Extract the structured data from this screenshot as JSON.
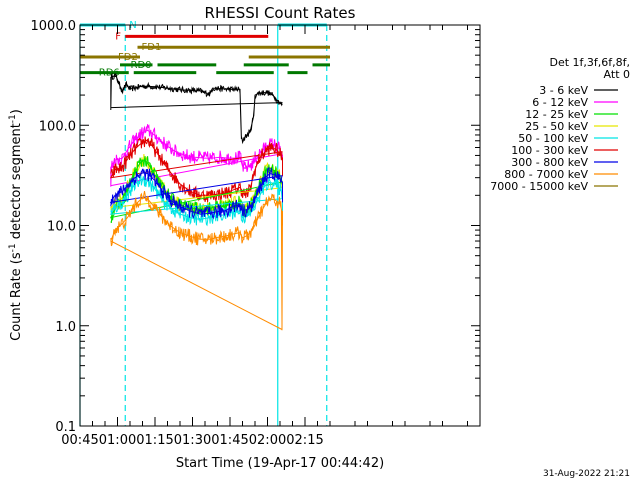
{
  "chart_data": {
    "type": "line",
    "title": "RHESSI Count Rates",
    "xlabel": "Start Time (19-Apr-17 00:44:42)",
    "ylabel_main": "Count Rate (s",
    "ylabel_sup": "-1",
    "ylabel_rest": " detector segment",
    "ylabel_sup2": "-1",
    "ylabel_end": ")",
    "y_scale": "log",
    "ylim": [
      0.1,
      1000
    ],
    "xlim_minutes": [
      0,
      160
    ],
    "x_ticks": [
      {
        "min": 0,
        "label": "00:45"
      },
      {
        "min": 15,
        "label": "01:00"
      },
      {
        "min": 30,
        "label": "01:15"
      },
      {
        "min": 45,
        "label": "01:30"
      },
      {
        "min": 60,
        "label": "01:45"
      },
      {
        "min": 75,
        "label": "02:00"
      },
      {
        "min": 90,
        "label": "02:15"
      }
    ],
    "y_ticks": [
      {
        "value": 0.1,
        "label": "0.1"
      },
      {
        "value": 1,
        "label": "1.0"
      },
      {
        "value": 10,
        "label": "10.0"
      },
      {
        "value": 100,
        "label": "100.0"
      },
      {
        "value": 1000,
        "label": "1000.0"
      }
    ],
    "legend_header": [
      "Det 1f,3f,6f,8f,",
      "Att 0"
    ],
    "footer_date": "31-Aug-2022 21:21",
    "night_lines": [
      {
        "min": 0,
        "style": "solid"
      },
      {
        "min": 18.1,
        "style": "dashed"
      },
      {
        "min": 79.1,
        "style": "solid"
      },
      {
        "min": 98.7,
        "style": "dashed"
      }
    ],
    "flag_intervals": [
      {
        "label": "N",
        "color": "#00e5e5",
        "y": 1000,
        "segments": [
          [
            0,
            18.1
          ],
          [
            79.1,
            98.7
          ]
        ]
      },
      {
        "label": "F",
        "color": "#e00000",
        "y": 770,
        "segments": [
          [
            18.1,
            75.3
          ]
        ]
      },
      {
        "label": "FD1",
        "color": "#8b7500",
        "y": 600,
        "segments": [
          [
            23,
            100
          ]
        ]
      },
      {
        "label": "FD2",
        "color": "#8b7500",
        "y": 480,
        "segments": [
          [
            0,
            24
          ],
          [
            67.5,
            100
          ]
        ]
      },
      {
        "label": "RD0",
        "color": "#007800",
        "y": 400,
        "segments": [
          [
            16,
            29
          ],
          [
            31,
            54.5
          ],
          [
            65.5,
            83.5
          ],
          [
            93,
            100
          ]
        ]
      },
      {
        "label": "RD6",
        "color": "#007800",
        "y": 335,
        "segments": [
          [
            0,
            19.5
          ],
          [
            21.5,
            46.5
          ],
          [
            54.5,
            77.5
          ],
          [
            83,
            91
          ]
        ]
      }
    ],
    "series": [
      {
        "name": "3 - 6 keV",
        "color": "#000000",
        "points": [
          [
            12.3,
            150
          ],
          [
            12.3,
            300
          ],
          [
            13.5,
            310
          ],
          [
            14.5,
            305
          ],
          [
            16,
            245
          ],
          [
            17,
            220
          ],
          [
            18.5,
            255
          ],
          [
            20,
            230
          ],
          [
            25,
            246
          ],
          [
            30,
            243
          ],
          [
            35,
            235
          ],
          [
            40,
            226
          ],
          [
            45,
            222
          ],
          [
            48,
            220
          ],
          [
            50,
            210
          ],
          [
            52,
            206
          ],
          [
            53,
            235
          ],
          [
            56,
            232
          ],
          [
            60,
            228
          ],
          [
            64,
            228
          ],
          [
            64.2,
            140
          ],
          [
            64.5,
            78
          ],
          [
            65,
            70
          ],
          [
            66,
            76
          ],
          [
            68,
            85
          ],
          [
            69.5,
            125
          ],
          [
            70,
            200
          ],
          [
            72,
            210
          ],
          [
            75,
            212
          ],
          [
            77,
            200
          ],
          [
            78,
            190
          ],
          [
            78.5,
            180
          ],
          [
            79.5,
            172
          ],
          [
            80.5,
            162
          ],
          [
            81,
            160
          ]
        ]
      },
      {
        "name": "6 - 12 keV",
        "color": "#ff00ff",
        "points": [
          [
            12.3,
            25
          ],
          [
            12.3,
            38
          ],
          [
            14,
            45
          ],
          [
            17,
            47
          ],
          [
            19,
            57
          ],
          [
            22,
            72
          ],
          [
            25,
            84
          ],
          [
            27,
            89
          ],
          [
            29,
            83
          ],
          [
            32,
            71
          ],
          [
            35,
            62
          ],
          [
            38,
            55
          ],
          [
            42,
            50
          ],
          [
            46,
            48
          ],
          [
            50,
            47
          ],
          [
            53,
            47
          ],
          [
            56,
            48
          ],
          [
            59,
            47
          ],
          [
            62,
            47
          ],
          [
            64,
            48
          ],
          [
            65,
            39
          ],
          [
            66,
            37
          ],
          [
            68,
            40
          ],
          [
            69.5,
            42
          ],
          [
            70,
            47
          ],
          [
            73,
            56
          ],
          [
            75,
            63
          ],
          [
            77,
            65
          ],
          [
            79,
            61
          ],
          [
            80,
            57
          ],
          [
            81,
            50
          ],
          [
            81,
            33
          ]
        ]
      },
      {
        "name": "12 - 25 keV",
        "color": "#00e000",
        "points": [
          [
            12.3,
            12
          ],
          [
            14,
            15
          ],
          [
            17,
            17
          ],
          [
            19,
            22
          ],
          [
            22,
            34
          ],
          [
            24,
            42
          ],
          [
            25.5,
            45
          ],
          [
            27,
            42
          ],
          [
            30,
            32
          ],
          [
            33,
            24
          ],
          [
            36,
            19
          ],
          [
            40,
            16
          ],
          [
            44,
            15
          ],
          [
            48,
            14.5
          ],
          [
            52,
            14.8
          ],
          [
            55,
            15.5
          ],
          [
            58,
            15.6
          ],
          [
            61,
            16.5
          ],
          [
            64,
            17
          ],
          [
            65,
            14
          ],
          [
            67,
            14.5
          ],
          [
            69,
            17
          ],
          [
            72,
            26
          ],
          [
            74,
            34
          ],
          [
            76,
            37
          ],
          [
            78,
            35
          ],
          [
            80,
            30
          ],
          [
            81,
            27
          ],
          [
            81,
            18
          ]
        ]
      },
      {
        "name": "25 - 50 keV",
        "color": "#e6e600",
        "points": [
          [
            12.3,
            15
          ],
          [
            14,
            17
          ],
          [
            17,
            19
          ],
          [
            19,
            24
          ],
          [
            22,
            35
          ],
          [
            24,
            42
          ],
          [
            25.5,
            46
          ],
          [
            27,
            41
          ],
          [
            30,
            32
          ],
          [
            33,
            24
          ],
          [
            36,
            19
          ],
          [
            40,
            16
          ],
          [
            44,
            15
          ],
          [
            48,
            14.5
          ],
          [
            52,
            14.8
          ],
          [
            55,
            15.5
          ],
          [
            58,
            15.6
          ],
          [
            61,
            16.5
          ],
          [
            64,
            17
          ],
          [
            65,
            14
          ],
          [
            67,
            14.5
          ],
          [
            69,
            17
          ],
          [
            72,
            26
          ],
          [
            74,
            34
          ],
          [
            76,
            38
          ],
          [
            78,
            35
          ],
          [
            80,
            30
          ],
          [
            81,
            27
          ],
          [
            81,
            16
          ]
        ]
      },
      {
        "name": "50 - 100 keV",
        "color": "#00e5e5",
        "points": [
          [
            12.3,
            13
          ],
          [
            14,
            15
          ],
          [
            17,
            17
          ],
          [
            19,
            20
          ],
          [
            22,
            26
          ],
          [
            25,
            29
          ],
          [
            27,
            28
          ],
          [
            30,
            23
          ],
          [
            33,
            18
          ],
          [
            36,
            15
          ],
          [
            40,
            13
          ],
          [
            44,
            12
          ],
          [
            48,
            11.5
          ],
          [
            52,
            12
          ],
          [
            55,
            12.5
          ],
          [
            58,
            12.8
          ],
          [
            61,
            13.5
          ],
          [
            64,
            14
          ],
          [
            65,
            12
          ],
          [
            67,
            12.5
          ],
          [
            69,
            14
          ],
          [
            72,
            20
          ],
          [
            74,
            25
          ],
          [
            76,
            27
          ],
          [
            78,
            26
          ],
          [
            80,
            23
          ],
          [
            81,
            21
          ],
          [
            81,
            14
          ]
        ]
      },
      {
        "name": "100 - 300 keV",
        "color": "#e00000",
        "points": [
          [
            12.3,
            30
          ],
          [
            14,
            36
          ],
          [
            17,
            38
          ],
          [
            19,
            46
          ],
          [
            22,
            58
          ],
          [
            25,
            68
          ],
          [
            26.5,
            71
          ],
          [
            28,
            67
          ],
          [
            31,
            52
          ],
          [
            34,
            40
          ],
          [
            37,
            32
          ],
          [
            40,
            26
          ],
          [
            44,
            22
          ],
          [
            48,
            20
          ],
          [
            52,
            20
          ],
          [
            55,
            20.5
          ],
          [
            58,
            21
          ],
          [
            61,
            22.5
          ],
          [
            64,
            24
          ],
          [
            65,
            22
          ],
          [
            66,
            20
          ],
          [
            67,
            21
          ],
          [
            68,
            23
          ],
          [
            70,
            36
          ],
          [
            72,
            48
          ],
          [
            75,
            57
          ],
          [
            77,
            60
          ],
          [
            79,
            56
          ],
          [
            80,
            51
          ],
          [
            81,
            47
          ],
          [
            81,
            31
          ]
        ]
      },
      {
        "name": "300 - 800 keV",
        "color": "#0000e6",
        "points": [
          [
            12.3,
            17
          ],
          [
            14,
            20
          ],
          [
            17,
            22
          ],
          [
            19,
            25
          ],
          [
            22,
            30
          ],
          [
            25,
            33.5
          ],
          [
            27,
            33
          ],
          [
            30,
            28
          ],
          [
            33,
            22
          ],
          [
            36,
            18
          ],
          [
            40,
            15.5
          ],
          [
            44,
            14
          ],
          [
            48,
            13
          ],
          [
            52,
            13.2
          ],
          [
            55,
            13.8
          ],
          [
            58,
            14
          ],
          [
            61,
            15.5
          ],
          [
            64,
            16
          ],
          [
            65,
            14
          ],
          [
            67,
            14.5
          ],
          [
            69,
            16
          ],
          [
            72,
            24
          ],
          [
            74,
            30
          ],
          [
            76,
            33
          ],
          [
            78,
            32
          ],
          [
            80,
            29
          ],
          [
            81,
            27
          ],
          [
            81,
            17
          ]
        ]
      },
      {
        "name": "800 - 7000 keV",
        "color": "#ff8c00",
        "points": [
          [
            12.3,
            7
          ],
          [
            14,
            9
          ],
          [
            17,
            10.5
          ],
          [
            19,
            12
          ],
          [
            22,
            16
          ],
          [
            25,
            19
          ],
          [
            27,
            18.5
          ],
          [
            30,
            15
          ],
          [
            33,
            12
          ],
          [
            36,
            10
          ],
          [
            40,
            8.5
          ],
          [
            44,
            7.8
          ],
          [
            48,
            7.3
          ],
          [
            52,
            7.3
          ],
          [
            55,
            7.6
          ],
          [
            58,
            7.8
          ],
          [
            61,
            8.2
          ],
          [
            64,
            8.5
          ],
          [
            65,
            7.5
          ],
          [
            67,
            8
          ],
          [
            69,
            9
          ],
          [
            72,
            13
          ],
          [
            74,
            16
          ],
          [
            76,
            18.5
          ],
          [
            78,
            18
          ],
          [
            80,
            16.5
          ],
          [
            80.7,
            14
          ],
          [
            80.8,
            0.9
          ],
          [
            81,
            14
          ],
          [
            81,
            10
          ]
        ]
      },
      {
        "name": "7000 - 15000 keV",
        "color": "#8b7500",
        "points": []
      }
    ]
  }
}
